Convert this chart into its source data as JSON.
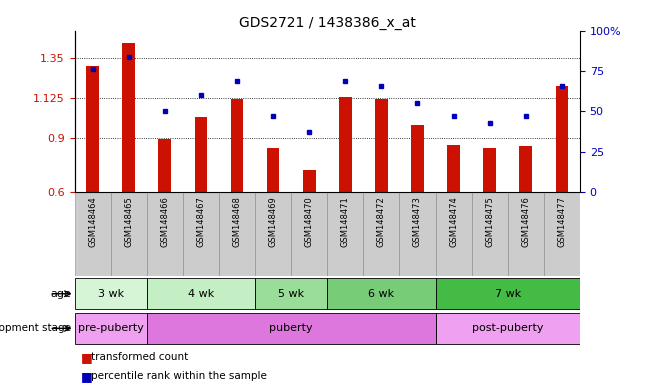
{
  "title": "GDS2721 / 1438386_x_at",
  "samples": [
    "GSM148464",
    "GSM148465",
    "GSM148466",
    "GSM148467",
    "GSM148468",
    "GSM148469",
    "GSM148470",
    "GSM148471",
    "GSM148472",
    "GSM148473",
    "GSM148474",
    "GSM148475",
    "GSM148476",
    "GSM148477"
  ],
  "red_values": [
    1.305,
    1.43,
    0.895,
    1.02,
    1.12,
    0.845,
    0.72,
    1.13,
    1.12,
    0.975,
    0.86,
    0.845,
    0.855,
    1.19
  ],
  "blue_percentiles": [
    76,
    84,
    50,
    60,
    69,
    47,
    37,
    69,
    66,
    55,
    47,
    43,
    47,
    66
  ],
  "ylim_left": [
    0.6,
    1.5
  ],
  "ylim_right": [
    0,
    100
  ],
  "yticks_left": [
    0.6,
    0.9,
    1.125,
    1.35
  ],
  "ytick_labels_left": [
    "0.6",
    "0.9",
    "1.125",
    "1.35"
  ],
  "yticks_right": [
    0,
    25,
    50,
    75,
    100
  ],
  "ytick_labels_right": [
    "0",
    "25",
    "50",
    "75",
    "100%"
  ],
  "age_groups": [
    {
      "label": "3 wk",
      "start": 0,
      "end": 1,
      "color": "#d6f5d6"
    },
    {
      "label": "4 wk",
      "start": 2,
      "end": 4,
      "color": "#b8ecb8"
    },
    {
      "label": "5 wk",
      "start": 5,
      "end": 6,
      "color": "#8fdc8f"
    },
    {
      "label": "6 wk",
      "start": 7,
      "end": 9,
      "color": "#66cc66"
    },
    {
      "label": "7 wk",
      "start": 10,
      "end": 13,
      "color": "#33bb33"
    }
  ],
  "dev_groups": [
    {
      "label": "pre-puberty",
      "start": 0,
      "end": 1,
      "color": "#f0a0f0"
    },
    {
      "label": "puberty",
      "start": 2,
      "end": 9,
      "color": "#dd77dd"
    },
    {
      "label": "post-puberty",
      "start": 10,
      "end": 13,
      "color": "#f0a0f0"
    }
  ],
  "bar_color": "#cc1100",
  "dot_color": "#0000bb",
  "legend_red_label": "transformed count",
  "legend_blue_label": "percentile rank within the sample",
  "base_value": 0.6,
  "sample_bg_color": "#cccccc",
  "sample_bg_dark": "#aaaaaa"
}
